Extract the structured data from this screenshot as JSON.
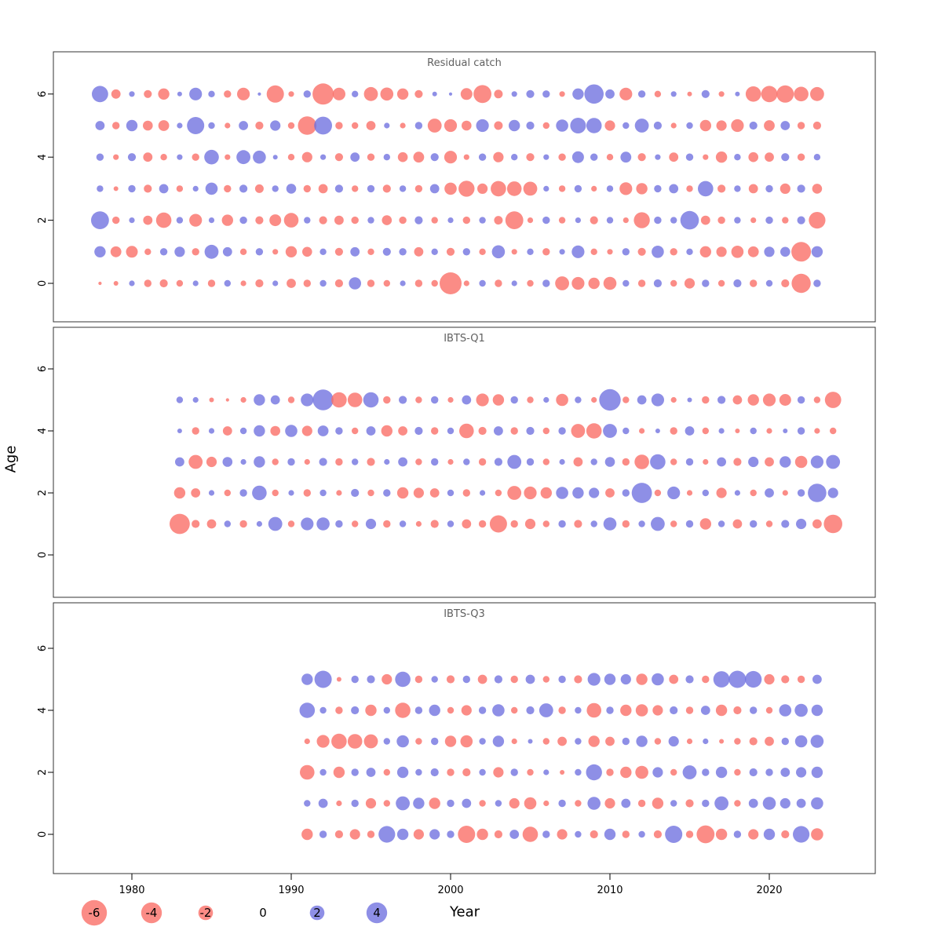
{
  "axes": {
    "xlabel": "Year",
    "ylabel": "Age",
    "x_ticks": [
      1980,
      1990,
      2000,
      2010,
      2020
    ],
    "y_ticks": [
      0,
      2,
      4,
      6
    ]
  },
  "legend": {
    "values": [
      -6,
      -4,
      -2,
      0,
      2,
      4
    ]
  },
  "style": {
    "negative_color": "#fa6b64",
    "positive_color": "#6e6fdf",
    "bubble_opacity": 0.78,
    "panel_border": "#333333",
    "title_color": "#606060"
  },
  "chart_data": [
    {
      "type": "scatter",
      "title": "Residual catch",
      "x_start": 1978,
      "x_end": 2023,
      "xlabel": "Year",
      "ylabel": "Age",
      "legend_values": [
        -6,
        -4,
        -2,
        0,
        2,
        4
      ],
      "values_by_age": {
        "6": [
          2.5,
          -0.8,
          0.3,
          -0.6,
          -1.2,
          0.2,
          1.5,
          0.4,
          -0.5,
          -1.5,
          0.1,
          -2.8,
          -0.3,
          0.5,
          -4.2,
          -1.5,
          0.4,
          -1.8,
          -1.6,
          -1.2,
          -0.6,
          0.2,
          0.1,
          -1.3,
          -3.0,
          -0.7,
          0.3,
          0.6,
          0.5,
          -0.3,
          1.2,
          3.5,
          0.8,
          -1.5,
          0.5,
          -0.4,
          0.3,
          -0.2,
          0.6,
          -0.3,
          0.2,
          -2.2,
          -2.5,
          -2.8,
          -2.0,
          -1.8
        ],
        "5": [
          0.8,
          -0.5,
          1.2,
          -0.9,
          -1.1,
          0.3,
          2.8,
          0.4,
          -0.3,
          0.8,
          -0.6,
          1.0,
          -0.4,
          -3.2,
          3.0,
          -0.5,
          -0.4,
          -0.8,
          0.3,
          -0.3,
          0.5,
          -1.8,
          -1.5,
          -0.9,
          1.5,
          -0.7,
          1.2,
          0.6,
          -0.4,
          1.4,
          2.3,
          2.2,
          -1.0,
          0.4,
          1.8,
          0.6,
          -0.3,
          0.4,
          -1.2,
          -1.0,
          -1.5,
          0.6,
          -1.1,
          0.8,
          -0.5,
          -0.6
        ],
        "4": [
          0.5,
          -0.3,
          0.6,
          -0.8,
          -0.4,
          0.3,
          -0.5,
          2.0,
          -0.3,
          1.8,
          1.6,
          0.2,
          -0.4,
          -1.0,
          0.3,
          -0.6,
          0.8,
          -0.5,
          0.4,
          -0.9,
          -1.1,
          0.6,
          -1.5,
          -0.3,
          0.5,
          -1.0,
          0.4,
          -0.6,
          0.3,
          -0.5,
          1.3,
          0.5,
          -0.4,
          1.1,
          -0.6,
          0.3,
          -0.8,
          0.5,
          -0.3,
          -1.2,
          0.4,
          -0.9,
          -0.8,
          0.6,
          -0.5,
          0.4
        ],
        "3": [
          0.4,
          -0.2,
          0.5,
          -0.6,
          0.8,
          -0.4,
          0.3,
          1.4,
          -0.5,
          0.6,
          -0.7,
          0.4,
          0.9,
          -0.5,
          -0.8,
          0.6,
          -0.4,
          0.5,
          -0.6,
          0.4,
          -0.5,
          0.8,
          -1.4,
          -2.4,
          -1.0,
          -2.2,
          -2.0,
          -1.8,
          0.3,
          -0.4,
          0.5,
          -0.3,
          0.4,
          -1.5,
          -1.2,
          0.5,
          0.8,
          -0.4,
          2.2,
          -0.6,
          0.4,
          -0.8,
          0.5,
          -1.0,
          0.6,
          -0.9
        ],
        "2": [
          3.0,
          -0.5,
          0.3,
          -0.8,
          -2.2,
          0.4,
          -1.5,
          0.3,
          -1.2,
          0.5,
          -0.6,
          -1.3,
          -2.0,
          0.4,
          -0.6,
          -0.8,
          -0.5,
          0.4,
          -0.9,
          -0.5,
          0.6,
          -0.4,
          0.3,
          -0.5,
          0.4,
          -0.7,
          -3.0,
          -0.3,
          0.5,
          -0.4,
          0.3,
          -0.6,
          0.4,
          -0.3,
          -2.4,
          0.5,
          0.4,
          3.2,
          -0.8,
          -0.5,
          0.4,
          -0.3,
          0.5,
          -0.4,
          0.6,
          -2.6
        ],
        "1": [
          1.2,
          -1.1,
          -1.3,
          -0.4,
          0.5,
          1.0,
          -0.5,
          1.8,
          0.8,
          -0.4,
          0.5,
          -0.3,
          -1.2,
          -0.9,
          0.4,
          -0.6,
          0.8,
          -0.4,
          0.6,
          0.5,
          -0.8,
          0.4,
          -0.6,
          0.5,
          -0.4,
          1.6,
          -0.3,
          0.4,
          -0.5,
          0.3,
          1.5,
          -0.4,
          -0.3,
          0.5,
          -0.6,
          1.4,
          -0.5,
          0.4,
          -1.2,
          -1.0,
          -1.4,
          -1.1,
          1.0,
          0.9,
          -3.6,
          1.2
        ],
        "0": [
          -0.1,
          -0.2,
          0.3,
          -0.5,
          -0.6,
          -0.4,
          0.3,
          -0.5,
          0.4,
          -0.3,
          -0.6,
          0.3,
          -0.8,
          -0.5,
          0.4,
          -0.6,
          1.4,
          -0.5,
          -0.4,
          0.3,
          -0.5,
          -0.4,
          -4.5,
          -0.3,
          0.4,
          -0.5,
          0.3,
          -0.4,
          0.5,
          -1.8,
          -1.5,
          -1.2,
          -1.6,
          0.4,
          -0.5,
          0.6,
          -0.4,
          -1.0,
          0.5,
          -0.4,
          0.6,
          -0.5,
          0.4,
          -0.6,
          -3.4,
          0.5
        ]
      }
    },
    {
      "type": "scatter",
      "title": "IBTS-Q1",
      "x_start": 1983,
      "x_end": 2024,
      "values_by_age": {
        "5": [
          0.4,
          0.3,
          -0.2,
          -0.1,
          -0.3,
          1.2,
          0.8,
          -0.4,
          1.5,
          4.0,
          -2.2,
          -2.0,
          2.2,
          -0.5,
          0.6,
          -0.4,
          0.5,
          -0.3,
          0.8,
          -1.5,
          -1.2,
          0.5,
          -0.4,
          0.3,
          -1.4,
          0.4,
          -0.3,
          4.3,
          -0.4,
          0.8,
          1.5,
          -0.3,
          0.2,
          -0.5,
          0.6,
          -0.8,
          -1.2,
          -1.5,
          -1.3,
          0.5,
          -0.4,
          -2.5
        ],
        "4": [
          0.2,
          -0.5,
          0.3,
          -0.8,
          0.4,
          1.2,
          -0.9,
          1.4,
          -1.0,
          1.1,
          0.5,
          -0.4,
          0.8,
          -1.2,
          -0.8,
          0.6,
          -0.5,
          0.4,
          -2.0,
          -0.6,
          0.8,
          -0.5,
          0.6,
          -0.4,
          0.5,
          -1.8,
          -2.2,
          1.8,
          0.4,
          -0.3,
          0.2,
          -0.5,
          0.8,
          -0.4,
          0.3,
          -0.2,
          0.4,
          -0.3,
          0.2,
          0.5,
          -0.3,
          -0.4
        ],
        "3": [
          0.8,
          -1.8,
          -1.0,
          0.9,
          0.3,
          1.2,
          -0.4,
          0.5,
          -0.3,
          0.6,
          -0.5,
          0.4,
          -0.6,
          0.3,
          0.8,
          -0.4,
          0.5,
          -0.3,
          0.4,
          -0.5,
          0.6,
          1.8,
          0.5,
          -0.4,
          0.3,
          -0.8,
          0.4,
          0.9,
          -0.5,
          -2.0,
          2.2,
          -0.4,
          0.5,
          -0.3,
          0.8,
          -0.6,
          1.0,
          -0.8,
          1.2,
          -1.4,
          1.5,
          1.8
        ],
        "2": [
          -1.2,
          -0.8,
          0.3,
          -0.4,
          0.5,
          2.0,
          -0.4,
          0.3,
          -0.5,
          0.4,
          -0.3,
          0.6,
          -0.4,
          0.5,
          -1.2,
          -1.0,
          -0.8,
          0.4,
          -0.5,
          0.3,
          -0.4,
          -1.8,
          -1.5,
          -1.2,
          1.4,
          1.2,
          1.0,
          -0.8,
          0.5,
          3.8,
          -0.4,
          1.5,
          -0.3,
          0.4,
          -1.0,
          0.3,
          -0.4,
          0.8,
          -0.3,
          0.5,
          3.2,
          1.0
        ],
        "1": [
          -3.8,
          -0.6,
          -0.8,
          0.4,
          -0.5,
          0.3,
          1.8,
          -0.4,
          1.5,
          1.6,
          0.5,
          -0.4,
          1.0,
          -0.5,
          0.4,
          -0.3,
          -0.6,
          0.4,
          -0.8,
          -0.5,
          -2.8,
          -0.5,
          -1.0,
          -0.4,
          0.5,
          -0.6,
          0.4,
          1.6,
          -0.5,
          0.4,
          1.8,
          -0.4,
          0.5,
          -1.2,
          0.4,
          -0.8,
          0.5,
          -0.4,
          0.6,
          1.0,
          -0.8,
          -3.2
        ]
      }
    },
    {
      "type": "scatter",
      "title": "IBTS-Q3",
      "x_start": 1991,
      "x_end": 2023,
      "values_by_age": {
        "5": [
          1.2,
          2.8,
          -0.2,
          0.5,
          0.6,
          -1.0,
          2.2,
          -0.5,
          0.4,
          -0.6,
          0.5,
          -0.8,
          0.6,
          -0.5,
          0.8,
          -0.4,
          0.5,
          -0.6,
          1.5,
          1.2,
          1.0,
          -1.2,
          1.4,
          -0.8,
          0.6,
          -0.5,
          2.5,
          2.8,
          2.6,
          -1.0,
          -0.6,
          -0.5,
          0.8
        ],
        "4": [
          2.2,
          0.4,
          -0.5,
          0.6,
          -1.2,
          0.4,
          -2.2,
          0.5,
          1.2,
          -0.4,
          -1.0,
          0.5,
          1.4,
          -0.4,
          0.6,
          1.8,
          -0.5,
          0.4,
          -2.0,
          0.5,
          -1.2,
          -1.4,
          -1.0,
          0.6,
          -0.5,
          0.8,
          -1.2,
          -0.6,
          0.5,
          -0.4,
          1.4,
          1.6,
          1.2
        ],
        "3": [
          -0.3,
          -1.5,
          -2.2,
          -2.0,
          -1.8,
          0.4,
          1.4,
          -0.4,
          0.5,
          -1.2,
          -1.4,
          0.4,
          1.2,
          -0.3,
          0.2,
          -0.4,
          -0.8,
          0.4,
          -1.2,
          -0.8,
          0.5,
          1.2,
          -0.4,
          1.0,
          -0.3,
          0.3,
          -0.2,
          -0.4,
          -0.6,
          -0.8,
          0.5,
          1.4,
          1.6
        ],
        "2": [
          -2.0,
          0.4,
          -1.2,
          0.5,
          0.8,
          -0.4,
          1.2,
          0.4,
          0.6,
          -0.5,
          -0.6,
          0.4,
          -1.0,
          0.5,
          -0.4,
          0.3,
          -0.2,
          0.4,
          2.4,
          -0.5,
          -1.2,
          -1.6,
          1.0,
          -0.4,
          1.8,
          0.5,
          1.2,
          -0.4,
          0.6,
          0.5,
          0.8,
          1.0,
          1.2
        ],
        "1": [
          0.4,
          0.8,
          -0.3,
          0.5,
          -1.0,
          -0.4,
          1.8,
          1.2,
          -1.2,
          0.5,
          0.8,
          -0.4,
          0.4,
          -1.0,
          -1.4,
          -0.3,
          0.5,
          -0.4,
          1.6,
          -1.0,
          0.8,
          -0.5,
          -1.2,
          0.4,
          -0.6,
          0.5,
          1.8,
          -0.4,
          0.8,
          1.6,
          1.0,
          0.8,
          1.4
        ],
        "0": [
          -1.2,
          0.5,
          -0.6,
          -1.0,
          -0.5,
          2.6,
          1.2,
          -1.0,
          1.0,
          0.5,
          -2.8,
          -1.2,
          -0.6,
          0.8,
          -2.2,
          0.5,
          -1.0,
          0.4,
          -0.6,
          1.2,
          -0.5,
          0.4,
          -0.6,
          2.8,
          -0.5,
          -3.0,
          -1.2,
          0.5,
          -1.0,
          1.2,
          -0.6,
          2.6,
          -1.4
        ]
      }
    }
  ]
}
